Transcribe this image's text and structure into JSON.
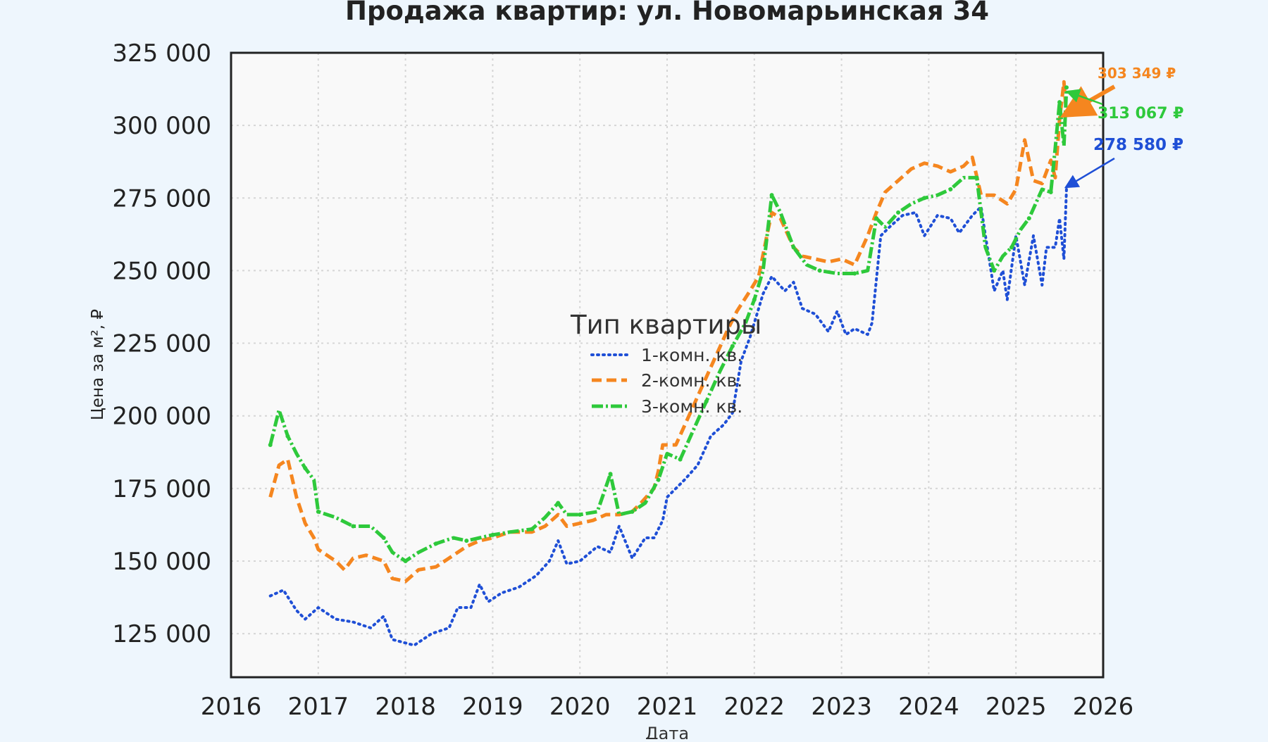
{
  "chart_data": {
    "type": "line",
    "title": "Продажа квартир: ул. Новомарьинская 34",
    "xlabel": "Дата",
    "ylabel": "Цена за м², ₽",
    "x_unit": "year",
    "xlim": [
      2016,
      2026
    ],
    "ylim": [
      110000,
      325000
    ],
    "x_ticks": [
      2016,
      2017,
      2018,
      2019,
      2020,
      2021,
      2022,
      2023,
      2024,
      2025,
      2026
    ],
    "x_tick_labels": [
      "2016",
      "2017",
      "2018",
      "2019",
      "2020",
      "2021",
      "2022",
      "2023",
      "2024",
      "2025",
      "2026"
    ],
    "y_ticks": [
      125000,
      150000,
      175000,
      200000,
      225000,
      250000,
      275000,
      300000,
      325000
    ],
    "y_tick_labels": [
      "125 000",
      "150 000",
      "175 000",
      "200 000",
      "225 000",
      "250 000",
      "275 000",
      "300 000",
      "325 000"
    ],
    "grid": true,
    "legend": {
      "title": "Тип квартиры",
      "placement": "center"
    },
    "series": [
      {
        "name": "1-комн. кв.",
        "color": "#1f4fd6",
        "style": "dotted",
        "x": [
          2016.45,
          2016.6,
          2016.75,
          2016.85,
          2017.0,
          2017.2,
          2017.4,
          2017.6,
          2017.75,
          2017.85,
          2018.1,
          2018.3,
          2018.5,
          2018.6,
          2018.75,
          2018.85,
          2018.95,
          2019.1,
          2019.3,
          2019.5,
          2019.65,
          2019.75,
          2019.85,
          2020.0,
          2020.2,
          2020.35,
          2020.45,
          2020.6,
          2020.75,
          2020.85,
          2020.95,
          2021.0,
          2021.2,
          2021.35,
          2021.5,
          2021.65,
          2021.75,
          2021.85,
          2021.95,
          2022.1,
          2022.2,
          2022.35,
          2022.45,
          2022.55,
          2022.7,
          2022.85,
          2022.95,
          2023.05,
          2023.15,
          2023.3,
          2023.35,
          2023.45,
          2023.55,
          2023.7,
          2023.85,
          2023.95,
          2024.1,
          2024.25,
          2024.35,
          2024.5,
          2024.6,
          2024.65,
          2024.75,
          2024.85,
          2024.9,
          2025.0,
          2025.1,
          2025.2,
          2025.3,
          2025.35,
          2025.45,
          2025.5,
          2025.55,
          2025.58
        ],
        "y": [
          138000,
          140000,
          133000,
          130000,
          134000,
          130000,
          129000,
          127000,
          131000,
          123000,
          121000,
          125000,
          127000,
          134000,
          134000,
          142000,
          136000,
          139000,
          141000,
          145000,
          150000,
          157000,
          149000,
          150000,
          155000,
          153000,
          162000,
          151000,
          158000,
          158000,
          164000,
          172000,
          178000,
          183000,
          193000,
          197000,
          201000,
          219000,
          227000,
          242000,
          248000,
          243000,
          246000,
          237000,
          235000,
          229000,
          236000,
          228000,
          230000,
          228000,
          232000,
          262000,
          265000,
          269000,
          270000,
          262000,
          269000,
          268000,
          263000,
          269000,
          272000,
          262000,
          243000,
          250000,
          240000,
          262000,
          245000,
          262000,
          245000,
          258000,
          258000,
          268000,
          254000,
          278580
        ]
      },
      {
        "name": "2-комн. кв.",
        "color": "#f5861f",
        "style": "dashed",
        "x": [
          2016.45,
          2016.55,
          2016.65,
          2016.75,
          2016.85,
          2016.95,
          2017.0,
          2017.2,
          2017.3,
          2017.4,
          2017.55,
          2017.75,
          2017.85,
          2018.0,
          2018.15,
          2018.35,
          2018.55,
          2018.7,
          2018.85,
          2019.0,
          2019.2,
          2019.45,
          2019.6,
          2019.75,
          2019.85,
          2020.0,
          2020.15,
          2020.3,
          2020.45,
          2020.6,
          2020.7,
          2020.85,
          2020.9,
          2020.95,
          2021.1,
          2021.25,
          2021.4,
          2021.55,
          2021.7,
          2021.8,
          2021.95,
          2022.05,
          2022.15,
          2022.2,
          2022.3,
          2022.45,
          2022.55,
          2022.7,
          2022.85,
          2023.0,
          2023.15,
          2023.3,
          2023.4,
          2023.5,
          2023.65,
          2023.8,
          2023.95,
          2024.1,
          2024.25,
          2024.4,
          2024.5,
          2024.6,
          2024.75,
          2024.9,
          2025.0,
          2025.1,
          2025.2,
          2025.3,
          2025.4,
          2025.45,
          2025.5,
          2025.55,
          2025.58
        ],
        "y": [
          172000,
          183000,
          185000,
          172000,
          163000,
          158000,
          154000,
          150000,
          147000,
          151000,
          152000,
          150000,
          144000,
          143000,
          147000,
          148000,
          152000,
          155000,
          157000,
          158000,
          160000,
          160000,
          162000,
          166000,
          162000,
          163000,
          164000,
          166000,
          166000,
          167000,
          170000,
          175000,
          181000,
          190000,
          190000,
          200000,
          210000,
          220000,
          230000,
          236000,
          243000,
          248000,
          263000,
          270000,
          268000,
          258000,
          255000,
          254000,
          253000,
          254000,
          252000,
          262000,
          270000,
          277000,
          281000,
          285000,
          287000,
          286000,
          284000,
          286000,
          289000,
          276000,
          276000,
          273000,
          278000,
          295000,
          281000,
          280000,
          288000,
          282000,
          302000,
          315000,
          303349
        ]
      },
      {
        "name": "3-комн. кв.",
        "color": "#2ec93b",
        "style": "dashdot",
        "x": [
          2016.45,
          2016.55,
          2016.65,
          2016.75,
          2016.85,
          2016.95,
          2017.0,
          2017.2,
          2017.4,
          2017.6,
          2017.75,
          2017.85,
          2018.0,
          2018.15,
          2018.35,
          2018.55,
          2018.7,
          2018.85,
          2019.0,
          2019.2,
          2019.45,
          2019.6,
          2019.75,
          2019.85,
          2020.0,
          2020.2,
          2020.35,
          2020.45,
          2020.6,
          2020.75,
          2020.9,
          2021.0,
          2021.15,
          2021.3,
          2021.45,
          2021.6,
          2021.75,
          2021.9,
          2022.0,
          2022.1,
          2022.2,
          2022.3,
          2022.45,
          2022.6,
          2022.75,
          2022.95,
          2023.15,
          2023.3,
          2023.4,
          2023.5,
          2023.65,
          2023.8,
          2023.95,
          2024.1,
          2024.25,
          2024.4,
          2024.55,
          2024.65,
          2024.75,
          2024.85,
          2024.95,
          2025.05,
          2025.15,
          2025.3,
          2025.4,
          2025.45,
          2025.5,
          2025.55,
          2025.58
        ],
        "y": [
          190000,
          202000,
          193000,
          187000,
          182000,
          178000,
          167000,
          165000,
          162000,
          162000,
          158000,
          153000,
          150000,
          153000,
          156000,
          158000,
          157000,
          158000,
          159000,
          160000,
          161000,
          165000,
          170000,
          166000,
          166000,
          167000,
          180000,
          166000,
          167000,
          170000,
          178000,
          187000,
          185000,
          195000,
          205000,
          215000,
          224000,
          232000,
          240000,
          250000,
          276000,
          270000,
          258000,
          252000,
          250000,
          249000,
          249000,
          250000,
          268000,
          265000,
          270000,
          273000,
          275000,
          276000,
          278000,
          282000,
          282000,
          258000,
          250000,
          255000,
          258000,
          264000,
          268000,
          278000,
          277000,
          292000,
          308000,
          293000,
          313067
        ]
      }
    ],
    "annotations": [
      {
        "text": "303 349 ₽",
        "series": "2-комн. кв.",
        "color": "#f5861f"
      },
      {
        "text": "313 067 ₽",
        "series": "3-комн. кв.",
        "color": "#2ec93b"
      },
      {
        "text": "278 580 ₽",
        "series": "1-комн. кв.",
        "color": "#1f4fd6"
      }
    ]
  }
}
